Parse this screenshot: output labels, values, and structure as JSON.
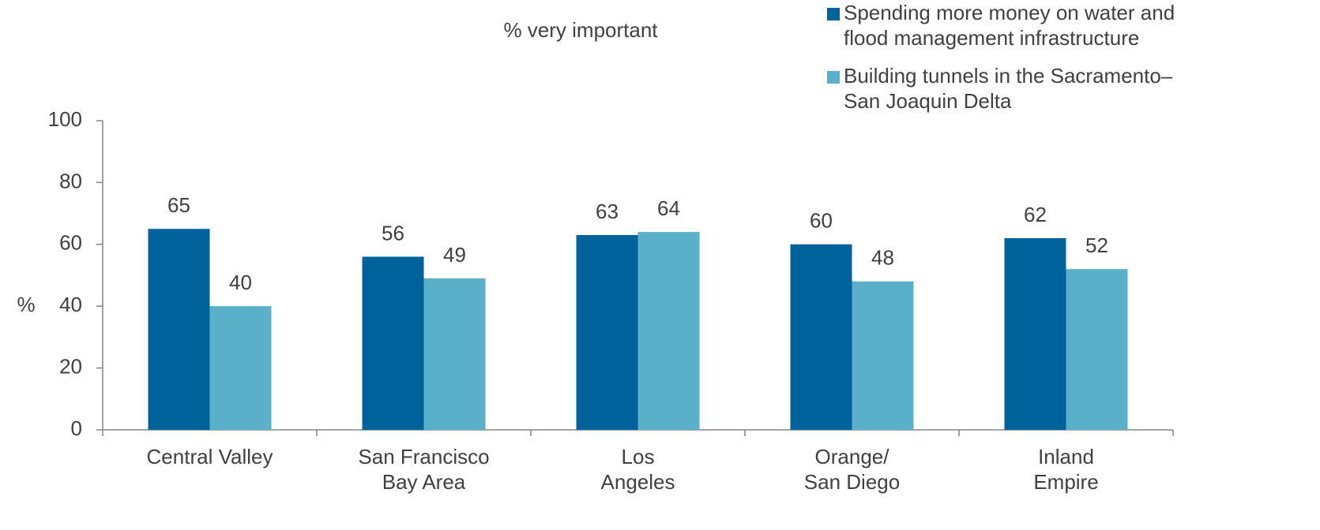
{
  "chart_data": {
    "type": "bar",
    "subtitle": "% very important",
    "y_label": "%",
    "categories": [
      "Central Valley",
      "San Francisco\nBay Area",
      "Los\nAngeles",
      "Orange/\nSan Diego",
      "Inland\nEmpire"
    ],
    "series": [
      {
        "name": "Spending more money on water and\nflood management infrastructure",
        "color": "#00629b",
        "values": [
          65,
          56,
          63,
          60,
          62
        ]
      },
      {
        "name": "Building tunnels in the Sacramento–\nSan Joaquin Delta",
        "color": "#5aafc9",
        "values": [
          40,
          49,
          64,
          48,
          52
        ]
      }
    ],
    "ylim": [
      0,
      100
    ],
    "yticks": [
      0,
      20,
      40,
      60,
      80,
      100
    ],
    "grid": false,
    "legend": "top-right"
  }
}
